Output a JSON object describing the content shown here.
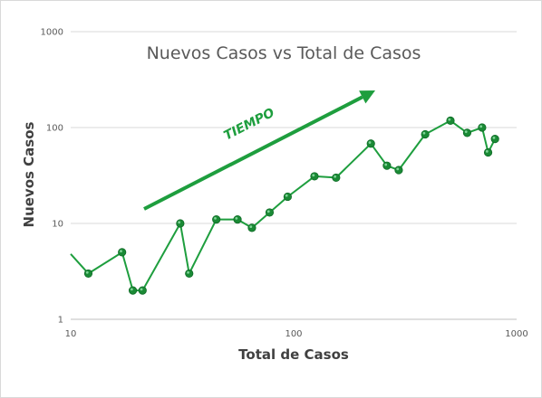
{
  "chart_data": {
    "type": "line",
    "title": "Nuevos Casos vs Total de Casos",
    "xlabel": "Total de Casos",
    "ylabel": "Nuevos Casos",
    "x_scale": "log",
    "y_scale": "log",
    "xlim": [
      10,
      1000
    ],
    "ylim": [
      1,
      1000
    ],
    "x_ticks": [
      "10",
      "100",
      "1000"
    ],
    "y_ticks": [
      "1",
      "10",
      "100",
      "1000"
    ],
    "grid": {
      "horizontal": true,
      "vertical": false
    },
    "legend": "none",
    "annotation": {
      "text": "TIEMPO",
      "type": "arrow",
      "direction": "up-right"
    },
    "colors": {
      "series": "#1e9e3e",
      "marker": "#1a8a35",
      "grid": "#d9d9d9",
      "axis": "#bfbfbf",
      "title": "#595959",
      "axis_title": "#404040"
    },
    "series": [
      {
        "x": [
          10,
          12,
          17,
          19,
          21,
          31,
          34,
          45,
          56,
          65,
          78,
          94,
          124,
          155,
          222,
          262,
          296,
          389,
          505,
          600,
          700,
          745,
          800
        ],
        "y": [
          4.8,
          3,
          5,
          2,
          2,
          10,
          3,
          11,
          11,
          9,
          13,
          19,
          31,
          30,
          68,
          40,
          36,
          85,
          118,
          88,
          100,
          55,
          76
        ]
      }
    ]
  }
}
